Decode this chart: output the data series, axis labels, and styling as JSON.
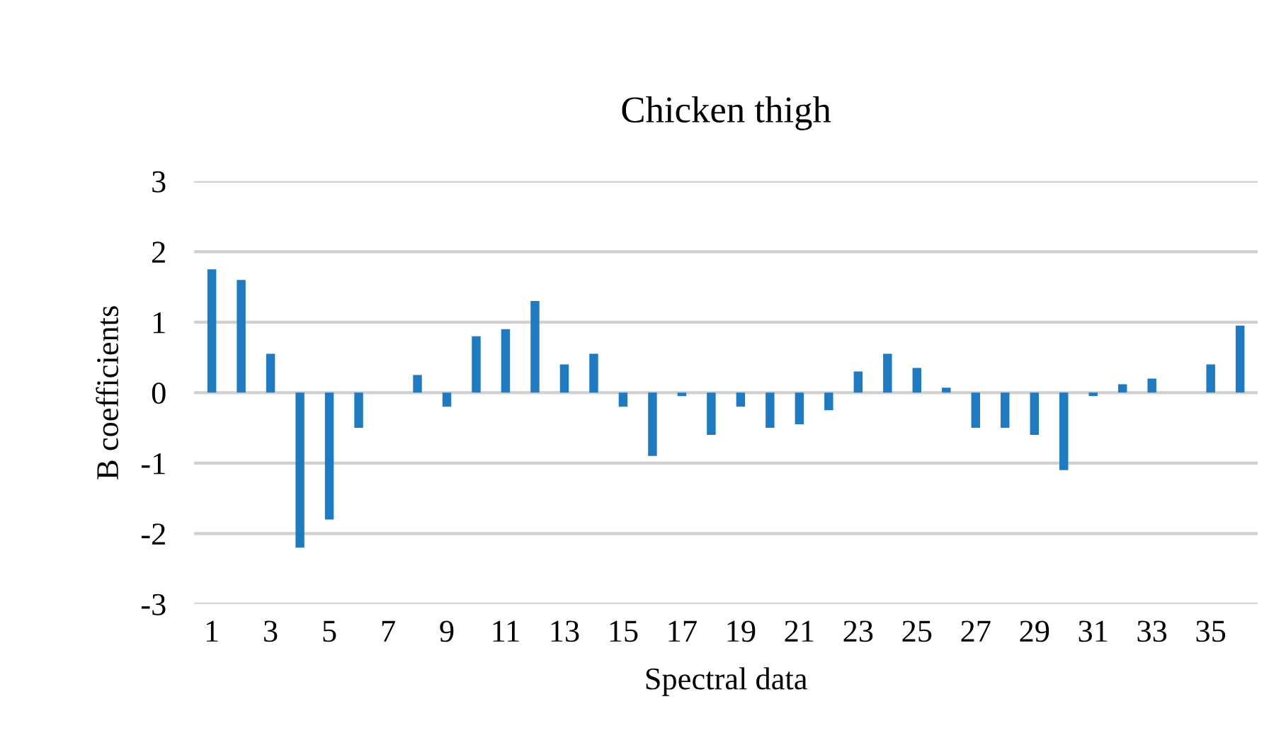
{
  "chart_data": {
    "type": "bar",
    "title": "Chicken thigh",
    "xlabel": "Spectral data",
    "ylabel": "B coefficients",
    "categories": [
      "1",
      null,
      "3",
      null,
      "5",
      null,
      "7",
      null,
      "9",
      null,
      "11",
      null,
      "13",
      null,
      "15",
      null,
      "17",
      null,
      "19",
      null,
      "21",
      null,
      "23",
      null,
      "25",
      null,
      "27",
      null,
      "29",
      null,
      "31",
      null,
      "33",
      null,
      "35",
      null
    ],
    "values": [
      1.75,
      1.6,
      0.55,
      -2.2,
      -1.8,
      -0.5,
      0,
      0.25,
      -0.2,
      0.8,
      0.9,
      1.3,
      0.4,
      0.55,
      -0.2,
      -0.9,
      -0.05,
      -0.6,
      -0.2,
      -0.5,
      -0.45,
      -0.25,
      0.3,
      0.55,
      0.35,
      0.07,
      -0.5,
      -0.5,
      -0.6,
      -1.1,
      -0.05,
      0.12,
      0.2,
      0,
      0.4,
      0.95
    ],
    "color": "#1f7bc1",
    "ylim": [
      -3,
      3
    ],
    "yticks": [
      -3,
      -2,
      -1,
      0,
      1,
      2,
      3
    ],
    "grid": "y"
  }
}
